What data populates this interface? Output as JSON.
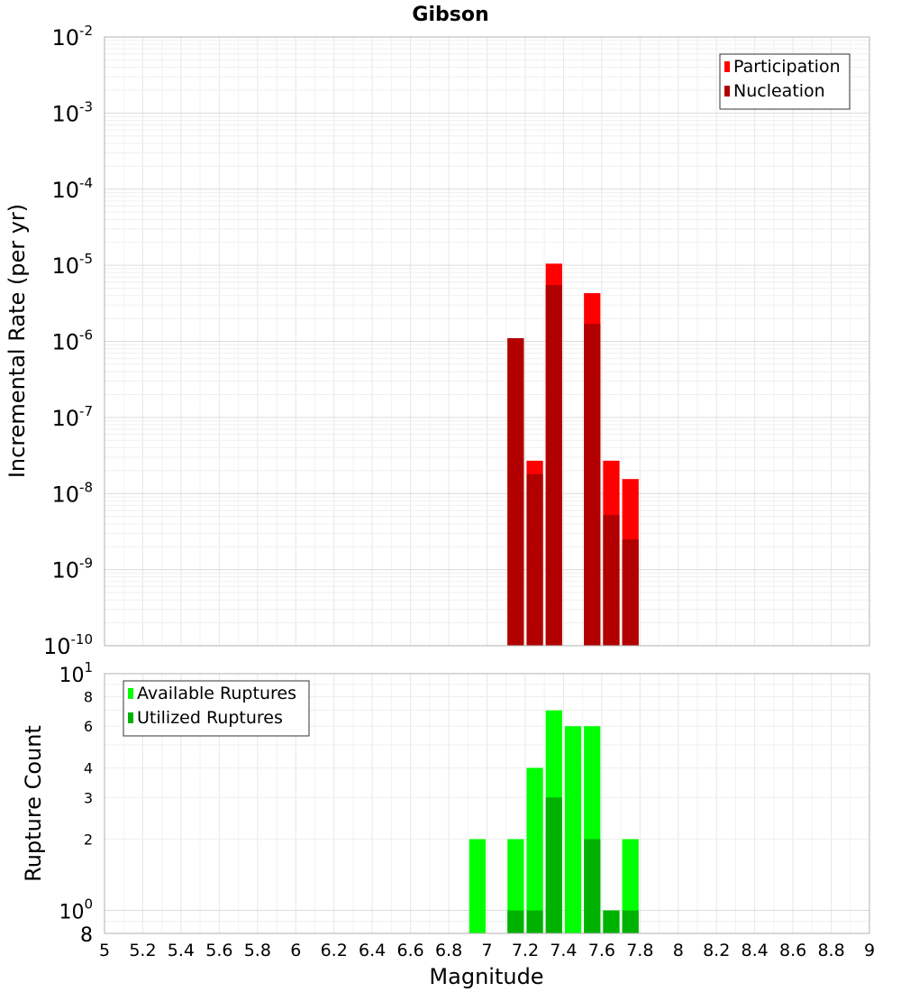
{
  "chart_data": [
    {
      "type": "bar",
      "title": "Gibson",
      "xlabel": "",
      "ylabel": "Incremental Rate (per yr)",
      "y_scale": "log",
      "xlim": [
        5,
        9
      ],
      "ylim": [
        1e-10,
        0.01
      ],
      "grid": true,
      "legend_position": "top-right",
      "y_tick_labels": [
        {
          "base": "10",
          "exp": "-10",
          "value": 1e-10
        },
        {
          "base": "10",
          "exp": "-9",
          "value": 1e-09
        },
        {
          "base": "10",
          "exp": "-8",
          "value": 1e-08
        },
        {
          "base": "10",
          "exp": "-7",
          "value": 1e-07
        },
        {
          "base": "10",
          "exp": "-6",
          "value": 1e-06
        },
        {
          "base": "10",
          "exp": "-5",
          "value": 1e-05
        },
        {
          "base": "10",
          "exp": "-4",
          "value": 0.0001
        },
        {
          "base": "10",
          "exp": "-3",
          "value": 0.001
        },
        {
          "base": "10",
          "exp": "-2",
          "value": 0.01
        }
      ],
      "bin_width": 0.1,
      "series": [
        {
          "name": "Participation",
          "color": "#ff0000",
          "points": [
            {
              "x": 7.15,
              "y": 1.1e-06
            },
            {
              "x": 7.25,
              "y": 2.7e-08
            },
            {
              "x": 7.35,
              "y": 1.05e-05
            },
            {
              "x": 7.55,
              "y": 4.3e-06
            },
            {
              "x": 7.65,
              "y": 2.7e-08
            },
            {
              "x": 7.75,
              "y": 1.55e-08
            }
          ]
        },
        {
          "name": "Nucleation",
          "color": "#b20000",
          "points": [
            {
              "x": 7.15,
              "y": 1.1e-06
            },
            {
              "x": 7.25,
              "y": 1.8e-08
            },
            {
              "x": 7.35,
              "y": 5.5e-06
            },
            {
              "x": 7.55,
              "y": 1.7e-06
            },
            {
              "x": 7.65,
              "y": 5.2e-09
            },
            {
              "x": 7.75,
              "y": 2.5e-09
            }
          ]
        }
      ]
    },
    {
      "type": "bar",
      "title": "",
      "xlabel": "Magnitude",
      "ylabel": "Rupture Count",
      "y_scale": "log",
      "xlim": [
        5,
        9
      ],
      "ylim": [
        0.8,
        10
      ],
      "grid": true,
      "legend_position": "top-left",
      "x_ticks": [
        "5",
        "5.2",
        "5.4",
        "5.6",
        "5.8",
        "6",
        "6.2",
        "6.4",
        "6.6",
        "6.8",
        "7",
        "7.2",
        "7.4",
        "7.6",
        "7.8",
        "8",
        "8.2",
        "8.4",
        "8.6",
        "8.8",
        "9"
      ],
      "y_tick_labels": [
        {
          "base": "8",
          "exp": "",
          "value": 0.8,
          "major": true
        },
        {
          "base": "10",
          "exp": "0",
          "value": 1,
          "major": true
        },
        {
          "base": "2",
          "exp": "",
          "value": 2,
          "major": false
        },
        {
          "base": "3",
          "exp": "",
          "value": 3,
          "major": false
        },
        {
          "base": "4",
          "exp": "",
          "value": 4,
          "major": false
        },
        {
          "base": "6",
          "exp": "",
          "value": 6,
          "major": false
        },
        {
          "base": "8",
          "exp": "",
          "value": 8,
          "major": false
        },
        {
          "base": "10",
          "exp": "1",
          "value": 10,
          "major": true
        }
      ],
      "bin_width": 0.1,
      "series": [
        {
          "name": "Available Ruptures",
          "color": "#00ff00",
          "points": [
            {
              "x": 6.95,
              "y": 2
            },
            {
              "x": 7.15,
              "y": 2
            },
            {
              "x": 7.25,
              "y": 4
            },
            {
              "x": 7.35,
              "y": 7
            },
            {
              "x": 7.45,
              "y": 6
            },
            {
              "x": 7.55,
              "y": 6
            },
            {
              "x": 7.65,
              "y": 1
            },
            {
              "x": 7.75,
              "y": 2
            }
          ]
        },
        {
          "name": "Utilized Ruptures",
          "color": "#00b200",
          "points": [
            {
              "x": 7.15,
              "y": 1
            },
            {
              "x": 7.25,
              "y": 1
            },
            {
              "x": 7.35,
              "y": 3
            },
            {
              "x": 7.55,
              "y": 2
            },
            {
              "x": 7.65,
              "y": 1
            },
            {
              "x": 7.75,
              "y": 1
            }
          ]
        }
      ]
    }
  ]
}
